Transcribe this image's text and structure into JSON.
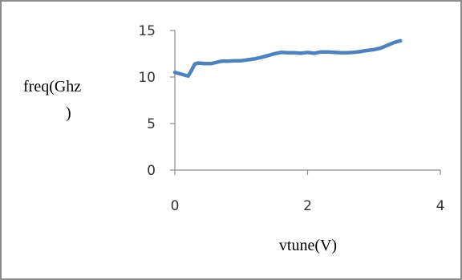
{
  "chart_data": {
    "type": "line",
    "title": "",
    "xlabel": "vtune(V)",
    "ylabel_lines": [
      "freq(Ghz",
      ")"
    ],
    "xlim": [
      0,
      4
    ],
    "ylim": [
      0,
      15
    ],
    "x_ticks": [
      0,
      2,
      4
    ],
    "y_ticks": [
      0,
      5,
      10,
      15
    ],
    "grid": false,
    "legend": "none",
    "series": [
      {
        "color": "#4f81bd",
        "x": [
          0,
          0.1,
          0.2,
          0.25,
          0.3,
          0.35,
          0.45,
          0.55,
          0.7,
          0.8,
          0.9,
          1.0,
          1.1,
          1.2,
          1.3,
          1.4,
          1.5,
          1.6,
          1.7,
          1.8,
          1.9,
          2.0,
          2.1,
          2.2,
          2.3,
          2.4,
          2.5,
          2.6,
          2.7,
          2.8,
          2.9,
          3.0,
          3.1,
          3.2,
          3.3,
          3.4
        ],
        "values": [
          10.5,
          10.3,
          10.1,
          10.7,
          11.4,
          11.5,
          11.45,
          11.45,
          11.7,
          11.7,
          11.75,
          11.75,
          11.85,
          11.95,
          12.1,
          12.3,
          12.5,
          12.65,
          12.6,
          12.6,
          12.55,
          12.65,
          12.55,
          12.7,
          12.7,
          12.65,
          12.6,
          12.6,
          12.65,
          12.75,
          12.85,
          12.95,
          13.1,
          13.4,
          13.7,
          13.9
        ]
      }
    ]
  }
}
